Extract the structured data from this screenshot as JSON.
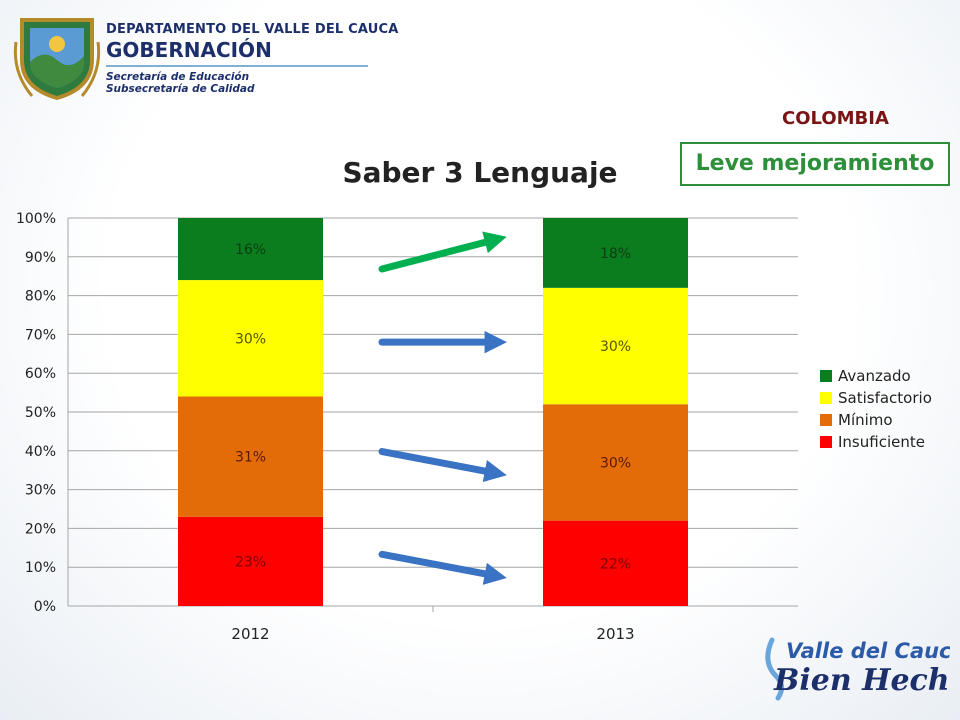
{
  "header": {
    "department": "DEPARTAMENTO DEL VALLE DEL CAUCA",
    "government": "GOBERNACIÓN",
    "secretariat": "Secretaría de Educación",
    "subsecretariat": "Subsecretaría de Calidad"
  },
  "country": "COLOMBIA",
  "callout": "Leve mejoramiento",
  "footer": {
    "brand_line1": "Valle del Cauca",
    "brand_line2": "Bien Hecho!"
  },
  "colors": {
    "avanzado": "#0c7d1f",
    "satisfactorio": "#ffff00",
    "minimo": "#e36c09",
    "insuficiente": "#ff0000",
    "trend_up": "#00b050",
    "trend": "#3a72c4",
    "accent_green": "#2e8f3a",
    "accent_red": "#7a1414"
  },
  "chart_data": {
    "type": "bar",
    "stacked": true,
    "title": "Saber 3 Lenguaje",
    "categories": [
      "2012",
      "2013"
    ],
    "series": [
      {
        "name": "Insuficiente",
        "values": [
          23,
          22
        ],
        "labels": [
          "23%",
          "22%"
        ]
      },
      {
        "name": "Mínimo",
        "values": [
          31,
          30
        ],
        "labels": [
          "31%",
          "30%"
        ]
      },
      {
        "name": "Satisfactorio",
        "values": [
          30,
          30
        ],
        "labels": [
          "30%",
          "30%"
        ]
      },
      {
        "name": "Avanzado",
        "values": [
          16,
          18
        ],
        "labels": [
          "16%",
          "18%"
        ]
      }
    ],
    "ylim": [
      0,
      100
    ],
    "yticks": [
      "0%",
      "10%",
      "20%",
      "30%",
      "40%",
      "50%",
      "60%",
      "70%",
      "80%",
      "90%",
      "100%"
    ],
    "legend": [
      "Avanzado",
      "Satisfactorio",
      "Mínimo",
      "Insuficiente"
    ],
    "legend_position": "right",
    "grid": true,
    "annotations": [
      {
        "type": "arrow",
        "direction": "up",
        "series": "Avanzado"
      },
      {
        "type": "arrow",
        "direction": "flat",
        "series": "Satisfactorio"
      },
      {
        "type": "arrow",
        "direction": "down",
        "series": "Mínimo"
      },
      {
        "type": "arrow",
        "direction": "down",
        "series": "Insuficiente"
      }
    ]
  }
}
